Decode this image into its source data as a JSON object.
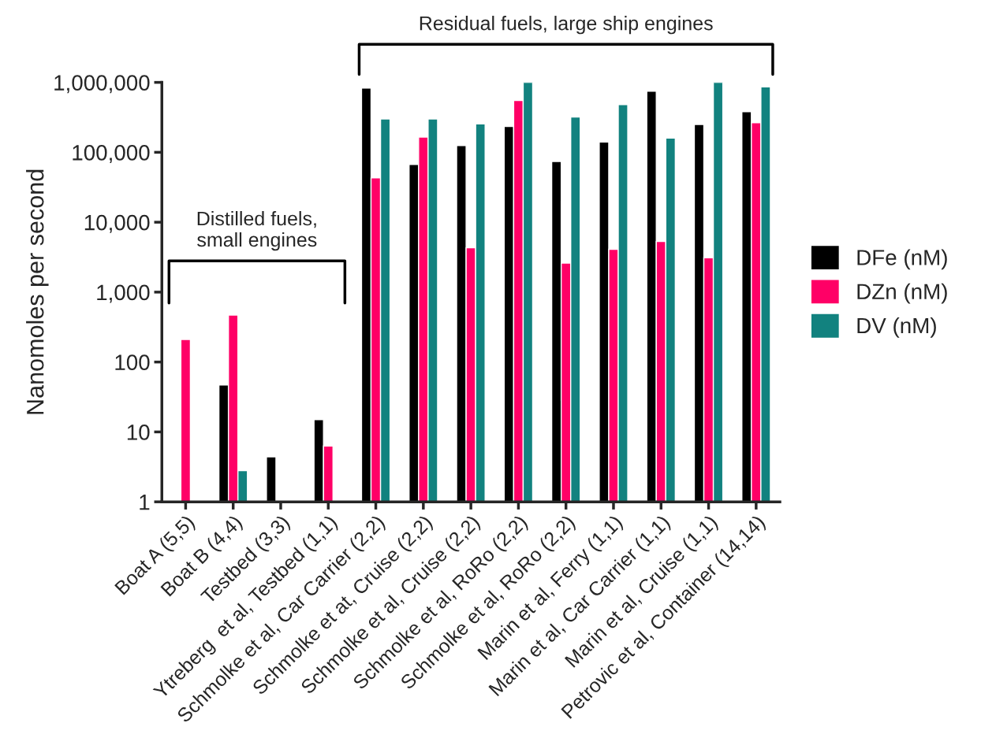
{
  "chart_data": {
    "type": "bar",
    "ylabel": "Nanomoles per second",
    "categories": [
      "Boat A (5,5)",
      "Boat B (4,4)",
      "Testbed (3,3)",
      "Ytreberg  et al, Testbed (1,1)",
      "Schmolke et al, Car Carrier (2,2)",
      "Schmolke et at, Cruise (2,2)",
      "Schmolke et al, Cruise (2,2)",
      "Schmolke et al, RoRo (2,2)",
      "Schmolke et al, RoRo (2,2)",
      "Marin et al, Ferry (1,1)",
      "Marin et al, Car Carrier (1,1)",
      "Marin et al, Cruise (1,1)",
      "Petrovic et al, Container (14,14)"
    ],
    "series": [
      {
        "name": "DFe (nM)",
        "color": "#000000",
        "values": [
          null,
          47,
          4.4,
          15,
          830000,
          67000,
          125000,
          235000,
          74000,
          140000,
          750000,
          250000,
          380000
        ]
      },
      {
        "name": "DZn (nM)",
        "color": "#ff0066",
        "values": [
          210,
          470,
          null,
          6.3,
          43000,
          165000,
          4300,
          550000,
          2600,
          4100,
          5300,
          3100,
          265000
        ]
      },
      {
        "name": "DV (nM)",
        "color": "#12827f",
        "values": [
          null,
          2.8,
          null,
          null,
          300000,
          300000,
          255000,
          1000000,
          320000,
          480000,
          160000,
          1000000,
          860000
        ]
      }
    ],
    "log": "y",
    "ylim": [
      1,
      1000000
    ],
    "yticks": [
      1,
      10,
      100,
      {
        "value": 1000,
        "label": "1,000"
      },
      {
        "value": 10000,
        "label": "10,000"
      },
      {
        "value": 100000,
        "label": "100,000"
      },
      {
        "value": 1000000,
        "label": "1,000,000"
      }
    ],
    "grid": false,
    "legend": "right",
    "annotations": [
      "Distilled fuels,\nsmall engines",
      "Residual fuels, large ship engines"
    ]
  }
}
